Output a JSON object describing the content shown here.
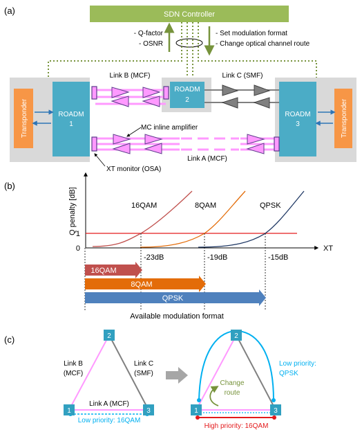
{
  "panel_a": {
    "label": "(a)",
    "controller": "SDN Controller",
    "monitor_items": [
      "- Q-factor",
      "- OSNR"
    ],
    "control_items": [
      "- Set modulation format",
      "- Change optical channel route"
    ],
    "transponder_left": "Transponder",
    "transponder_right": "Transponder",
    "roadm1": [
      "ROADM",
      "1"
    ],
    "roadm2": [
      "ROADM",
      "2"
    ],
    "roadm3": [
      "ROADM",
      "3"
    ],
    "link_b": "Link B (MCF)",
    "link_c": "Link C (SMF)",
    "link_a": "Link A (MCF)",
    "amplifier_label": "MC inline amplifier",
    "xt_monitor_label": "XT monitor (OSA)"
  },
  "panel_b": {
    "label": "(b)",
    "y_axis_label": "Q penalty [dB]",
    "x_axis_label": "XT",
    "y_ticks": [
      "1",
      "0"
    ],
    "x_ticks": [
      "-23dB",
      "-19dB",
      "-15dB"
    ],
    "curve_labels": [
      "16QAM",
      "8QAM",
      "QPSK"
    ],
    "bars": [
      "16QAM",
      "8QAM",
      "QPSK"
    ],
    "footer": "Available modulation format",
    "colors": {
      "16QAM": "#c0504d",
      "8QAM": "#e36c09",
      "QPSK": "#4f81bd",
      "threshold": "#e31a1c"
    }
  },
  "chart_data": {
    "type": "line",
    "xlabel": "XT",
    "ylabel": "Q penalty [dB]",
    "x_ticks": [
      "-23dB",
      "-19dB",
      "-15dB"
    ],
    "y_ticks": [
      0,
      1
    ],
    "threshold_y": 1,
    "series": [
      {
        "name": "16QAM",
        "penalty_crosses_1dB_at_xt_db": -23
      },
      {
        "name": "8QAM",
        "penalty_crosses_1dB_at_xt_db": -19
      },
      {
        "name": "QPSK",
        "penalty_crosses_1dB_at_xt_db": -15
      }
    ]
  },
  "panel_c": {
    "label": "(c)",
    "nodes": [
      "1",
      "2",
      "3"
    ],
    "left_link_b": [
      "Link B",
      "(MCF)"
    ],
    "left_link_c": [
      "Link C",
      "(SMF)"
    ],
    "left_link_a": "Link A (MCF)",
    "left_low_priority": "Low priority: 16QAM",
    "right_low_priority": [
      "Low priority:",
      "QPSK"
    ],
    "change_route": [
      "Change",
      "route"
    ],
    "right_high_priority": "High priority: 16QAM"
  }
}
